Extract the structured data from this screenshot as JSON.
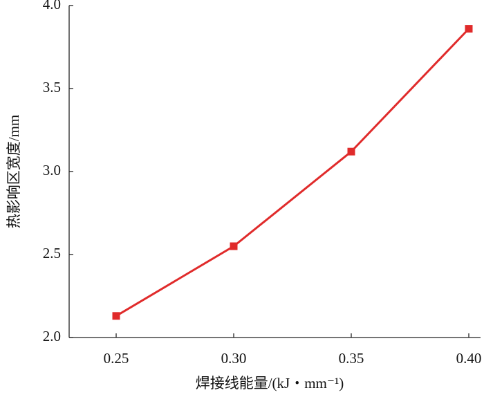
{
  "chart_data": {
    "type": "line",
    "xlabel": "焊接线能量/(kJ・mm⁻¹)",
    "ylabel": "热影响区宽度/mm",
    "x": [
      0.25,
      0.3,
      0.35,
      0.4
    ],
    "values": [
      2.13,
      2.55,
      3.12,
      3.86
    ],
    "color": "#e02b2b",
    "xlim": [
      0.23,
      0.405
    ],
    "xticks": [
      0.25,
      {
        "value": 0.3,
        "label": "0.30"
      },
      0.35,
      {
        "value": 0.4,
        "label": "0.40"
      }
    ],
    "ylim": [
      2.0,
      4.0
    ],
    "yticks": [
      {
        "value": 2.0,
        "label": "2.0"
      },
      2.5,
      {
        "value": 3.0,
        "label": "3.0"
      },
      3.5,
      {
        "value": 4.0,
        "label": "4.0"
      }
    ]
  }
}
